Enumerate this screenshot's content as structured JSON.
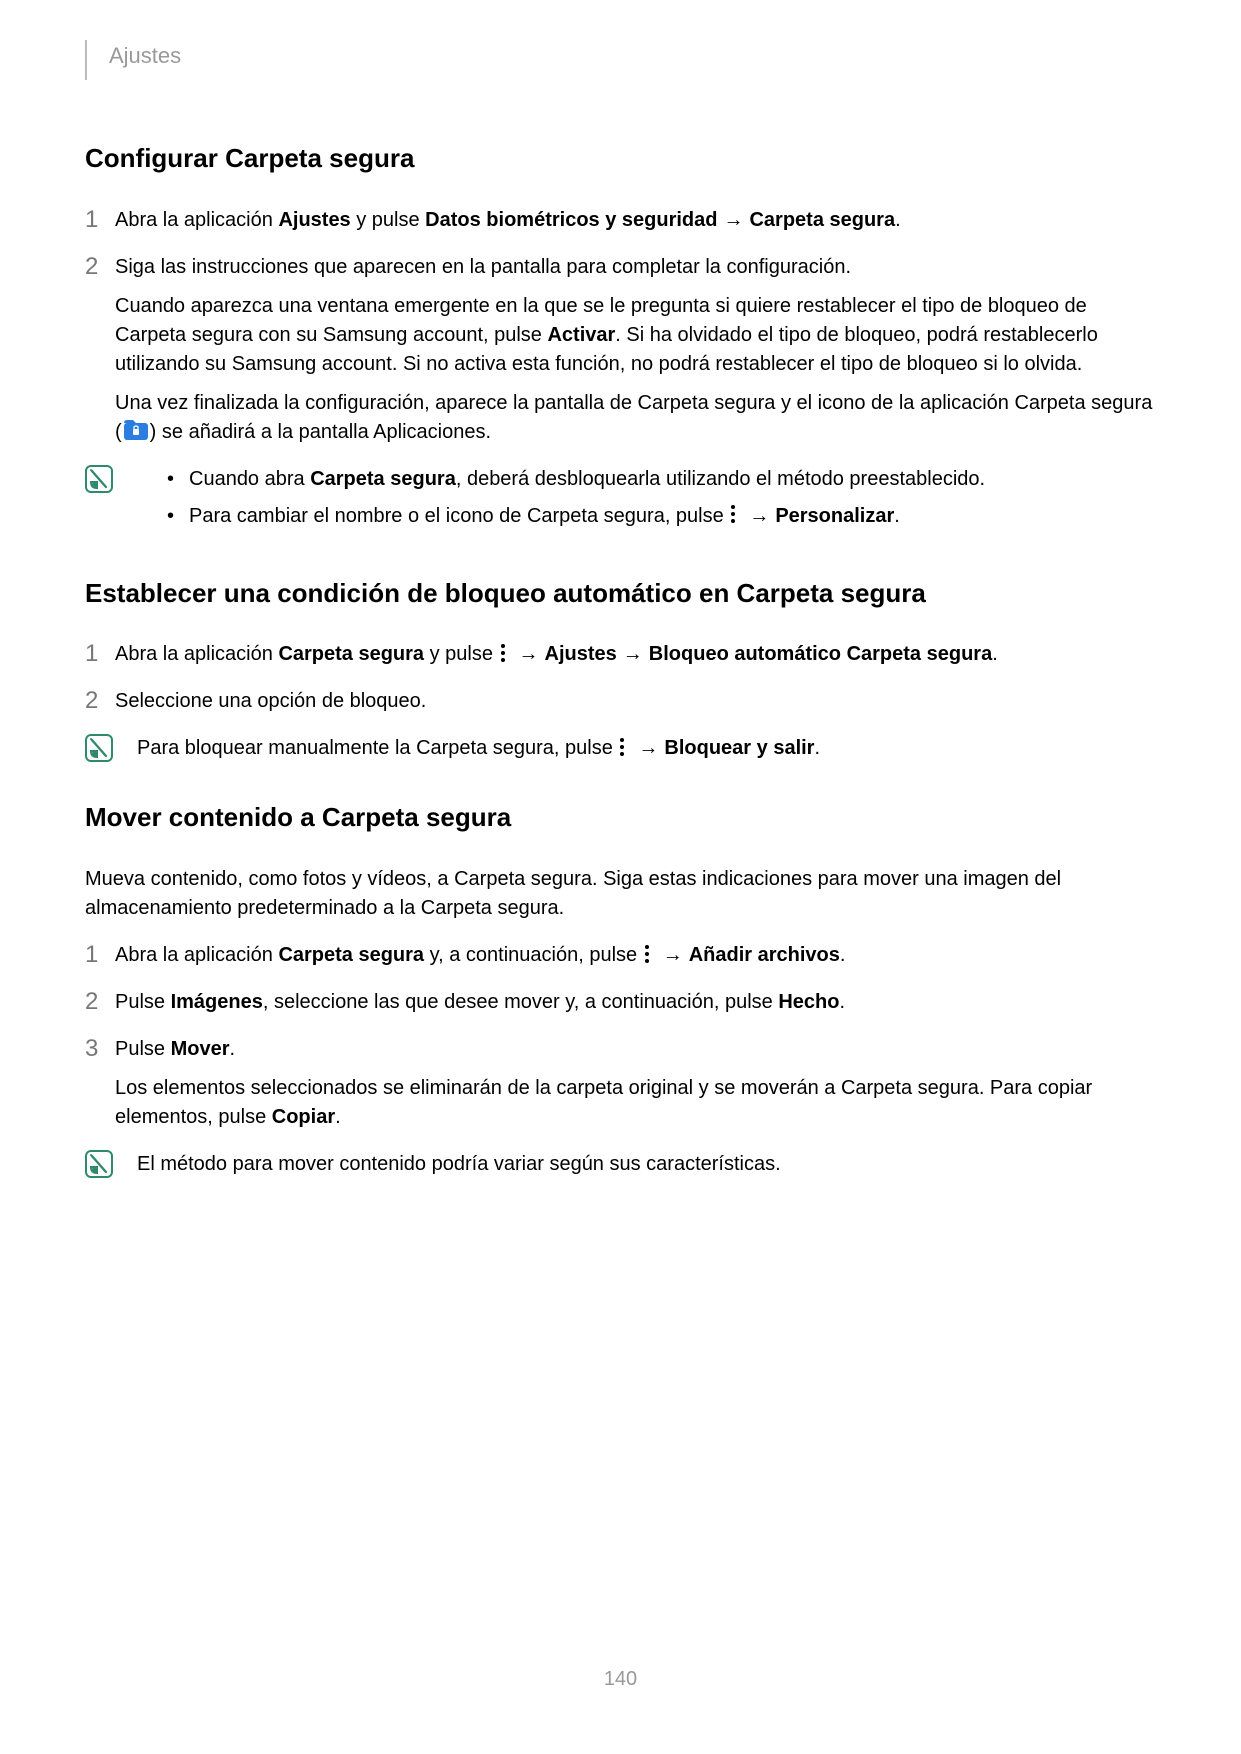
{
  "header": {
    "title": "Ajustes"
  },
  "colors": {
    "header_text": "#999999",
    "step_num": "#777777",
    "note_border": "#2e8a6b",
    "note_fill": "#2e8a6b",
    "folder_fill": "#2b7de0",
    "text": "#000000",
    "bg": "#ffffff"
  },
  "sections": [
    {
      "title": "Configurar Carpeta segura",
      "steps": [
        {
          "num": "1",
          "parts": [
            {
              "t": "Abra la aplicación "
            },
            {
              "t": "Ajustes",
              "bold": true
            },
            {
              "t": " y pulse "
            },
            {
              "t": "Datos biométricos y seguridad",
              "bold": true
            },
            {
              "arrow": true
            },
            {
              "t": "Carpeta segura",
              "bold": true
            },
            {
              "t": "."
            }
          ]
        },
        {
          "num": "2",
          "parts": [
            {
              "t": "Siga las instrucciones que aparecen en la pantalla para completar la configuración."
            }
          ],
          "subs": [
            {
              "parts": [
                {
                  "t": "Cuando aparezca una ventana emergente en la que se le pregunta si quiere restablecer el tipo de bloqueo de Carpeta segura con su Samsung account, pulse "
                },
                {
                  "t": "Activar",
                  "bold": true
                },
                {
                  "t": ". Si ha olvidado el tipo de bloqueo, podrá restablecerlo utilizando su Samsung account. Si no activa esta función, no podrá restablecer el tipo de bloqueo si lo olvida."
                }
              ]
            },
            {
              "parts": [
                {
                  "t": "Una vez finalizada la configuración, aparece la pantalla de Carpeta segura y el icono de la aplicación Carpeta segura ("
                },
                {
                  "folder": true
                },
                {
                  "t": ") se añadirá a la pantalla Aplicaciones."
                }
              ]
            }
          ]
        }
      ],
      "note_bullets": [
        {
          "parts": [
            {
              "t": "Cuando abra "
            },
            {
              "t": "Carpeta segura",
              "bold": true
            },
            {
              "t": ", deberá desbloquearla utilizando el método preestablecido."
            }
          ]
        },
        {
          "parts": [
            {
              "t": "Para cambiar el nombre o el icono de Carpeta segura, pulse "
            },
            {
              "more": true
            },
            {
              "arrow": true
            },
            {
              "t": "Personalizar",
              "bold": true
            },
            {
              "t": "."
            }
          ]
        }
      ]
    },
    {
      "title": "Establecer una condición de bloqueo automático en Carpeta segura",
      "steps": [
        {
          "num": "1",
          "parts": [
            {
              "t": "Abra la aplicación "
            },
            {
              "t": "Carpeta segura",
              "bold": true
            },
            {
              "t": " y pulse "
            },
            {
              "more": true
            },
            {
              "arrow": true
            },
            {
              "t": "Ajustes",
              "bold": true
            },
            {
              "arrow": true
            },
            {
              "t": "Bloqueo automático Carpeta segura",
              "bold": true
            },
            {
              "t": "."
            }
          ]
        },
        {
          "num": "2",
          "parts": [
            {
              "t": "Seleccione una opción de bloqueo."
            }
          ]
        }
      ],
      "note_text": {
        "parts": [
          {
            "t": "Para bloquear manualmente la Carpeta segura, pulse "
          },
          {
            "more": true
          },
          {
            "arrow": true
          },
          {
            "t": "Bloquear y salir",
            "bold": true
          },
          {
            "t": "."
          }
        ]
      }
    },
    {
      "title": "Mover contenido a Carpeta segura",
      "intro": {
        "parts": [
          {
            "t": "Mueva contenido, como fotos y vídeos, a Carpeta segura. Siga estas indicaciones para mover una imagen del almacenamiento predeterminado a la Carpeta segura."
          }
        ]
      },
      "steps": [
        {
          "num": "1",
          "parts": [
            {
              "t": "Abra la aplicación "
            },
            {
              "t": "Carpeta segura",
              "bold": true
            },
            {
              "t": " y, a continuación, pulse "
            },
            {
              "more": true
            },
            {
              "arrow": true
            },
            {
              "t": "Añadir archivos",
              "bold": true
            },
            {
              "t": "."
            }
          ]
        },
        {
          "num": "2",
          "parts": [
            {
              "t": "Pulse "
            },
            {
              "t": "Imágenes",
              "bold": true
            },
            {
              "t": ", seleccione las que desee mover y, a continuación, pulse "
            },
            {
              "t": "Hecho",
              "bold": true
            },
            {
              "t": "."
            }
          ]
        },
        {
          "num": "3",
          "parts": [
            {
              "t": "Pulse "
            },
            {
              "t": "Mover",
              "bold": true
            },
            {
              "t": "."
            }
          ],
          "subs": [
            {
              "parts": [
                {
                  "t": "Los elementos seleccionados se eliminarán de la carpeta original y se moverán a Carpeta segura. Para copiar elementos, pulse "
                },
                {
                  "t": "Copiar",
                  "bold": true
                },
                {
                  "t": "."
                }
              ]
            }
          ]
        }
      ],
      "note_text": {
        "parts": [
          {
            "t": "El método para mover contenido podría variar según sus características."
          }
        ]
      }
    }
  ],
  "page_number": "140",
  "arrow_glyph": "→"
}
